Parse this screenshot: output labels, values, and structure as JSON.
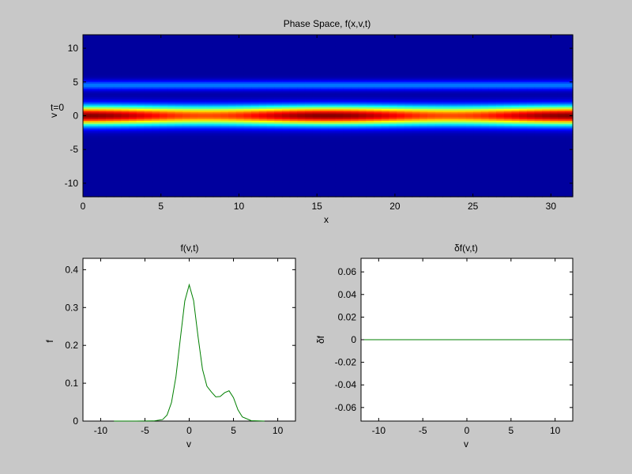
{
  "figure": {
    "background": "#c8c8c8"
  },
  "chart_data": [
    {
      "type": "heatmap",
      "title": "Phase Space, f(x,v,t)",
      "xlabel": "x",
      "ylabel": "v",
      "annotation": "t=0",
      "xlim": [
        0,
        31.4
      ],
      "ylim": [
        -12,
        12
      ],
      "xticks": [
        "0",
        "5",
        "10",
        "15",
        "20",
        "25",
        "30"
      ],
      "yticks": [
        "10",
        "5",
        "0",
        "-5",
        "-10"
      ],
      "colormap": "jet",
      "bands": [
        {
          "v": 0,
          "sigma": 1.0,
          "peak": 0.36,
          "note": "main Maxwellian, slight modulation along x (stronger near x=0 and x=31)"
        },
        {
          "v": 4.5,
          "sigma": 0.5,
          "peak": 0.08,
          "note": "beam"
        }
      ]
    },
    {
      "type": "line",
      "title": "f(v,t)",
      "xlabel": "v",
      "ylabel": "f",
      "xlim": [
        -12,
        12
      ],
      "ylim": [
        0,
        0.43
      ],
      "xticks": [
        "-10",
        "-5",
        "0",
        "5",
        "10"
      ],
      "yticks": [
        "0",
        "0.1",
        "0.2",
        "0.3",
        "0.4"
      ],
      "series": [
        {
          "color": "#007f00",
          "x": [
            -8.5,
            -6,
            -4,
            -3,
            -2.5,
            -2,
            -1.5,
            -1,
            -0.5,
            0,
            0.5,
            1,
            1.5,
            2,
            2.5,
            3,
            3.5,
            4,
            4.5,
            5,
            5.5,
            6,
            7,
            8.5
          ],
          "y": [
            0.0,
            0.0,
            0.0004,
            0.004,
            0.016,
            0.049,
            0.117,
            0.218,
            0.317,
            0.36,
            0.318,
            0.223,
            0.137,
            0.092,
            0.077,
            0.064,
            0.065,
            0.075,
            0.08,
            0.062,
            0.03,
            0.011,
            0.001,
            0.0
          ]
        }
      ]
    },
    {
      "type": "line",
      "title": "δf(v,t)",
      "xlabel": "v",
      "ylabel": "δf",
      "xlim": [
        -12,
        12
      ],
      "ylim": [
        -0.072,
        0.072
      ],
      "xticks": [
        "-10",
        "-5",
        "0",
        "5",
        "10"
      ],
      "yticks": [
        "0.06",
        "0.04",
        "0.02",
        "0",
        "-0.02",
        "-0.04",
        "-0.06"
      ],
      "series": [
        {
          "color": "#007f00",
          "x": [
            -12,
            12
          ],
          "y": [
            0,
            0
          ]
        }
      ]
    }
  ]
}
